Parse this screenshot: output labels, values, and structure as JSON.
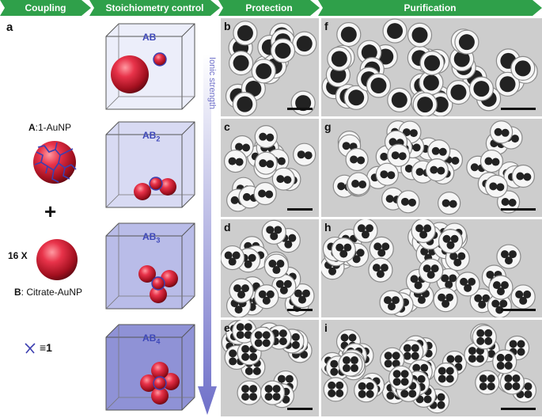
{
  "header": {
    "steps": [
      "Coupling",
      "Stoichiometry control",
      "Protection",
      "Purification"
    ]
  },
  "left": {
    "panel_label": "a",
    "a_label_prefix": "A",
    "a_label_rest": ":1-AuNP",
    "plus": "+",
    "multiplier": "16 X",
    "b_label_prefix": "B",
    "b_label_rest": ": Citrate-AuNP",
    "ligand_eq": "≡1"
  },
  "cubes": [
    {
      "label": "AB",
      "sub": ""
    },
    {
      "label": "AB",
      "sub": "2"
    },
    {
      "label": "AB",
      "sub": "3"
    },
    {
      "label": "AB",
      "sub": "4"
    }
  ],
  "ionic_strength_label": "Ionic strength",
  "tem_panels": [
    {
      "id": "b"
    },
    {
      "id": "c"
    },
    {
      "id": "d"
    },
    {
      "id": "e"
    },
    {
      "id": "f"
    },
    {
      "id": "g"
    },
    {
      "id": "h"
    },
    {
      "id": "i"
    }
  ],
  "colors": {
    "header_green": "#2fa04a",
    "cube_label": "#3e48b8",
    "sphere_red": "#d7263d",
    "ligand_blue": "#3c3fb0"
  }
}
